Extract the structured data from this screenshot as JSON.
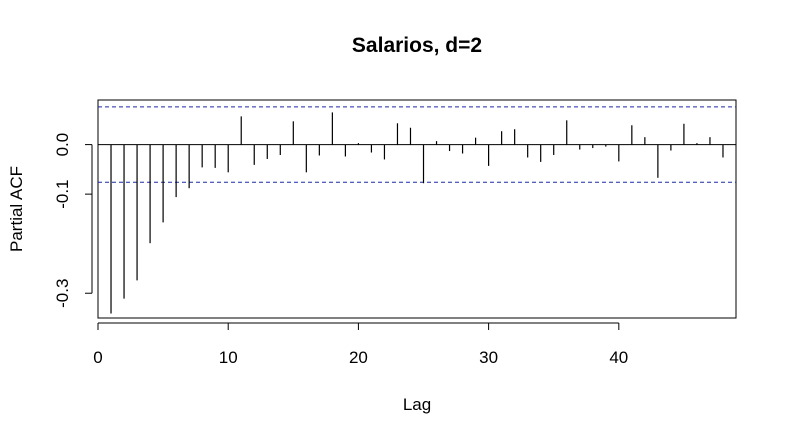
{
  "chart_data": {
    "type": "bar",
    "title": "Salarios, d=2",
    "xlabel": "Lag",
    "ylabel": "Partial ACF",
    "xlim": [
      0,
      49
    ],
    "ylim": [
      -0.35,
      0.09
    ],
    "xticks": [
      0,
      10,
      20,
      30,
      40
    ],
    "xtick_labels": [
      "0",
      "10",
      "20",
      "30",
      "40"
    ],
    "yticks": [
      -0.3,
      -0.1,
      0.0
    ],
    "ytick_labels": [
      "-0.3",
      "-0.1",
      "0.0"
    ],
    "confidence_bound": 0.076,
    "zero_line": true,
    "grid": false,
    "lags": [
      1,
      2,
      3,
      4,
      5,
      6,
      7,
      8,
      9,
      10,
      11,
      12,
      13,
      14,
      15,
      16,
      17,
      18,
      19,
      20,
      21,
      22,
      23,
      24,
      25,
      26,
      27,
      28,
      29,
      30,
      31,
      32,
      33,
      34,
      35,
      36,
      37,
      38,
      39,
      40,
      41,
      42,
      43,
      44,
      45,
      46,
      47,
      48
    ],
    "values": [
      -0.341,
      -0.311,
      -0.274,
      -0.199,
      -0.157,
      -0.106,
      -0.088,
      -0.046,
      -0.047,
      -0.056,
      0.057,
      -0.041,
      -0.029,
      -0.021,
      0.047,
      -0.056,
      -0.022,
      0.065,
      -0.024,
      0.003,
      -0.016,
      -0.03,
      0.043,
      0.034,
      -0.078,
      0.007,
      -0.013,
      -0.018,
      0.014,
      -0.043,
      0.027,
      0.031,
      -0.026,
      -0.035,
      -0.021,
      0.049,
      -0.01,
      -0.007,
      -0.004,
      -0.034,
      0.039,
      0.015,
      -0.067,
      -0.012,
      0.042,
      0.003,
      0.015,
      -0.026
    ]
  }
}
